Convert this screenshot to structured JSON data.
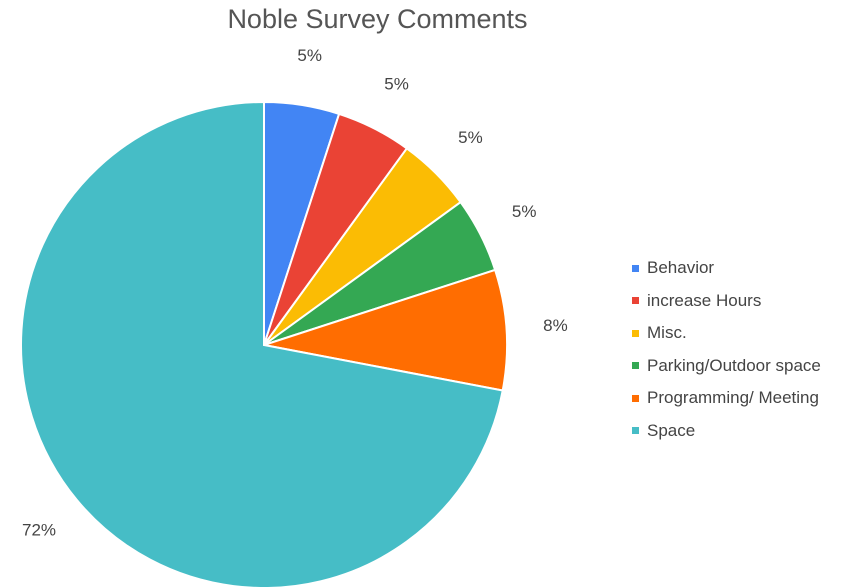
{
  "chart_data": {
    "type": "pie",
    "title": "Noble Survey Comments",
    "slices": [
      {
        "label": "Behavior",
        "value": 5,
        "value_label": "5%",
        "color": "#4285f4"
      },
      {
        "label": "increase Hours",
        "value": 5,
        "value_label": "5%",
        "color": "#ea4335"
      },
      {
        "label": "Misc.",
        "value": 5,
        "value_label": "5%",
        "color": "#fbbc04"
      },
      {
        "label": "Parking/Outdoor space",
        "value": 5,
        "value_label": "5%",
        "color": "#34a853"
      },
      {
        "label": "Programming/ Meeting",
        "value": 8,
        "value_label": "8%",
        "color": "#ff6d01"
      },
      {
        "label": "Space",
        "value": 72,
        "value_label": "72%",
        "color": "#46bdc6"
      }
    ],
    "legend_position": "right"
  }
}
